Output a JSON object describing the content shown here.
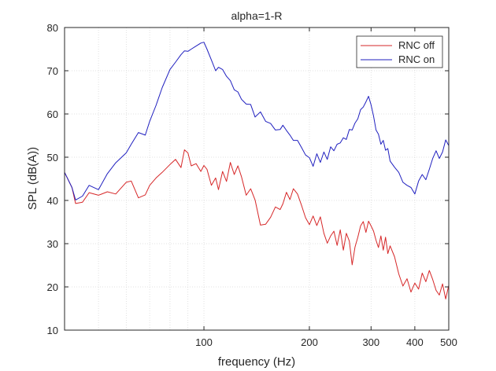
{
  "chart_data": {
    "type": "line",
    "title": "alpha=1-R",
    "xlabel": "frequency (Hz)",
    "ylabel": "SPL (dB(A))",
    "x_scale": "log",
    "xlim": [
      40,
      500
    ],
    "ylim": [
      10,
      80
    ],
    "x_ticks": [
      100,
      200,
      300,
      400,
      500
    ],
    "x_tick_labels": [
      "100",
      "200",
      "300",
      "400",
      "500"
    ],
    "x_minor_grid": [
      50,
      60,
      70,
      80,
      90
    ],
    "y_ticks": [
      10,
      20,
      30,
      40,
      50,
      60,
      70,
      80
    ],
    "y_tick_labels": [
      "10",
      "20",
      "30",
      "40",
      "50",
      "60",
      "70",
      "80"
    ],
    "grid": "dotted",
    "legend_position": "top-right",
    "series": [
      {
        "name": "RNC off",
        "color": "#d62728",
        "x": [
          40,
          42,
          43,
          45,
          47,
          50,
          53,
          56,
          60,
          62,
          65,
          68,
          70,
          73,
          76,
          80,
          83,
          86,
          88,
          90,
          92,
          95,
          98,
          100,
          102,
          105,
          108,
          110,
          113,
          116,
          119,
          122,
          125,
          128,
          132,
          136,
          140,
          145,
          150,
          155,
          160,
          165,
          168,
          172,
          176,
          180,
          185,
          190,
          195,
          200,
          205,
          210,
          215,
          220,
          225,
          230,
          235,
          240,
          245,
          250,
          255,
          260,
          265,
          270,
          275,
          280,
          285,
          290,
          295,
          300,
          305,
          310,
          315,
          320,
          325,
          330,
          335,
          340,
          350,
          360,
          370,
          380,
          390,
          400,
          410,
          420,
          430,
          440,
          450,
          460,
          470,
          480,
          490,
          500
        ],
        "values": [
          46.5,
          43,
          39.3,
          39.6,
          41.8,
          41.2,
          42,
          41.5,
          44.2,
          44.5,
          40.6,
          41.3,
          43.5,
          45.2,
          46.5,
          48.3,
          49.5,
          47.6,
          51.7,
          51,
          48,
          48.5,
          46.7,
          48.1,
          47.2,
          43.5,
          45.2,
          42.5,
          46.7,
          44.4,
          48.8,
          46,
          48,
          45.5,
          41.2,
          42.7,
          40.1,
          34.3,
          34.5,
          36.1,
          38.5,
          37.9,
          39.2,
          41.9,
          40.2,
          42.7,
          41.5,
          38.8,
          36,
          34.4,
          36.4,
          34.2,
          36.2,
          32.4,
          30.1,
          31.8,
          32.9,
          29.6,
          33.2,
          28.5,
          32.4,
          30.6,
          25.1,
          29.2,
          31.5,
          34.1,
          35.1,
          32.6,
          35.2,
          34.1,
          32.9,
          30.8,
          29.1,
          31.8,
          28.5,
          31.5,
          27.7,
          29.5,
          27,
          23,
          20.2,
          21.9,
          18.8,
          20.9,
          19.5,
          23.2,
          21.2,
          23.8,
          21.7,
          19.2,
          18.1,
          20.7,
          17.2,
          20.4
        ]
      },
      {
        "name": "RNC on",
        "color": "#1f1fbf",
        "x": [
          40,
          42,
          43,
          45,
          47,
          50,
          53,
          56,
          60,
          62,
          65,
          68,
          70,
          73,
          76,
          80,
          83,
          86,
          88,
          90,
          92,
          95,
          98,
          100,
          102,
          105,
          108,
          110,
          113,
          116,
          119,
          122,
          125,
          128,
          132,
          136,
          140,
          145,
          150,
          155,
          160,
          165,
          168,
          172,
          176,
          180,
          185,
          190,
          195,
          200,
          205,
          210,
          215,
          220,
          225,
          230,
          235,
          240,
          245,
          250,
          255,
          260,
          265,
          270,
          275,
          280,
          285,
          290,
          295,
          300,
          305,
          310,
          315,
          320,
          325,
          330,
          335,
          340,
          350,
          360,
          370,
          380,
          390,
          400,
          410,
          420,
          430,
          440,
          450,
          460,
          470,
          480,
          490,
          500
        ],
        "values": [
          46.5,
          43,
          40.1,
          41,
          43.5,
          42.5,
          46.2,
          48.7,
          51,
          53,
          55.7,
          55.1,
          58.3,
          62,
          66.1,
          70.3,
          72,
          73.7,
          74.6,
          74.5,
          75,
          75.7,
          76.4,
          76.6,
          75,
          72.5,
          70,
          70.8,
          70.3,
          68.7,
          67.7,
          65.6,
          65.1,
          63.4,
          62.3,
          62.2,
          59.3,
          60.5,
          58.3,
          57.8,
          56.3,
          56.4,
          57.4,
          56.2,
          55.1,
          53.9,
          53.9,
          52.2,
          50.5,
          49.9,
          47.9,
          50.8,
          48.8,
          51.2,
          49.5,
          52.4,
          51.5,
          53,
          53.3,
          54.5,
          54.1,
          56.4,
          56.3,
          57.9,
          58.9,
          61,
          61.6,
          62.8,
          64.1,
          62.1,
          59.5,
          56.3,
          55.3,
          53,
          53.9,
          51.6,
          52,
          49.1,
          47.7,
          46.5,
          44.2,
          43.5,
          43,
          41.5,
          44.5,
          46,
          44.8,
          47.2,
          49.7,
          51.5,
          49.7,
          51.2,
          54,
          52.7
        ]
      }
    ]
  }
}
